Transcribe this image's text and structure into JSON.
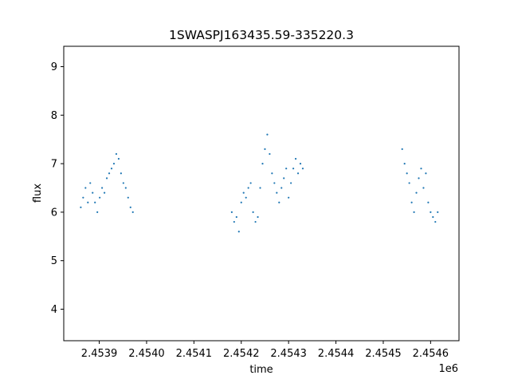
{
  "chart_data": {
    "type": "scatter",
    "title": "1SWASPJ163435.59-335220.3",
    "xlabel": "time",
    "ylabel": "flux",
    "x_offset_label": "1e6",
    "xlim": [
      2453825,
      2454660
    ],
    "ylim": [
      3.35,
      9.42
    ],
    "x_ticks": [
      2453900,
      2454000,
      2454100,
      2454200,
      2454300,
      2454400,
      2454500,
      2454600
    ],
    "x_tick_labels": [
      "2.4539",
      "2.4540",
      "2.4541",
      "2.4542",
      "2.4543",
      "2.4544",
      "2.4545",
      "2.4546"
    ],
    "y_ticks": [
      4,
      5,
      6,
      7,
      8,
      9
    ],
    "y_tick_labels": [
      "4",
      "5",
      "6",
      "7",
      "8",
      "9"
    ],
    "grid": false,
    "point_color": "#1f77b4",
    "series": [
      {
        "x": [
          2453861.0,
          2453866.0,
          2453871.0,
          2453876.0,
          2453881.0,
          2453886.0,
          2453891.0,
          2453896.0,
          2453901.0,
          2453906.0,
          2453911.0,
          2453916.0,
          2453921.0,
          2453926.0,
          2453931.0,
          2453936.0,
          2453941.0,
          2453946.0,
          2453951.0,
          2453956.0,
          2453961.0,
          2453966.0,
          2453971.0,
          2454180.0,
          2454185.0,
          2454190.0,
          2454195.0,
          2454200.0,
          2454205.0,
          2454210.0,
          2454215.0,
          2454220.0,
          2454225.0,
          2454230.0,
          2454235.0,
          2454240.0,
          2454245.0,
          2454250.0,
          2454255.0,
          2454260.0,
          2454265.0,
          2454270.0,
          2454275.0,
          2454280.0,
          2454285.0,
          2454290.0,
          2454295.0,
          2454300.0,
          2454305.0,
          2454310.0,
          2454315.0,
          2454320.0,
          2454325.0,
          2454330.0,
          2454540.0,
          2454545.0,
          2454550.0,
          2454555.0,
          2454560.0,
          2454565.0,
          2454570.0,
          2454575.0,
          2454580.0,
          2454585.0,
          2454590.0,
          2454595.0,
          2454600.0,
          2454605.0,
          2454610.0,
          2454615.0
        ],
        "y": [
          6.1,
          6.3,
          6.5,
          6.2,
          6.6,
          6.4,
          6.2,
          6.0,
          6.3,
          6.5,
          6.4,
          6.7,
          6.8,
          6.9,
          7.0,
          7.2,
          7.1,
          6.8,
          6.6,
          6.5,
          6.3,
          6.1,
          6.0,
          6.0,
          5.8,
          5.9,
          5.6,
          6.2,
          6.4,
          6.3,
          6.5,
          6.6,
          6.0,
          5.8,
          5.9,
          6.5,
          7.0,
          7.3,
          7.6,
          7.2,
          6.8,
          6.6,
          6.4,
          6.2,
          6.5,
          6.7,
          6.9,
          6.3,
          6.6,
          6.9,
          7.1,
          6.8,
          7.0,
          6.9,
          7.3,
          7.0,
          6.8,
          6.6,
          6.2,
          6.0,
          6.4,
          6.7,
          6.9,
          6.5,
          6.8,
          6.2,
          6.0,
          5.9,
          5.8,
          6.0
        ]
      }
    ]
  }
}
